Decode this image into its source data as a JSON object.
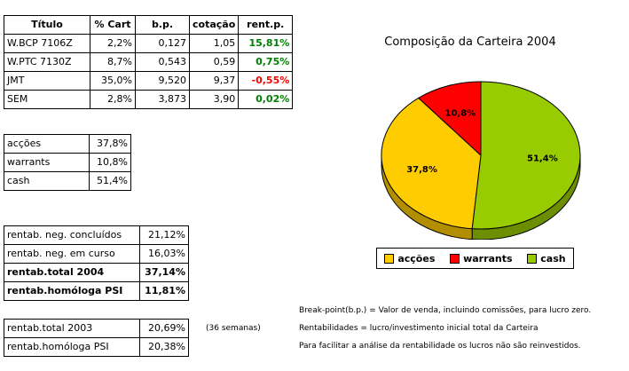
{
  "portfolio": {
    "headers": [
      "Título",
      "% Cart",
      "b.p.",
      "cotação",
      "rent.p."
    ],
    "rows": [
      {
        "titulo": "W.BCP 7106Z",
        "cart": "2,2%",
        "bp": "0,127",
        "cotacao": "1,05",
        "rent": "15,81%",
        "sign": "pos"
      },
      {
        "titulo": "W.PTC 7130Z",
        "cart": "8,7%",
        "bp": "0,543",
        "cotacao": "0,59",
        "rent": "0,75%",
        "sign": "pos"
      },
      {
        "titulo": "JMT",
        "cart": "35,0%",
        "bp": "9,520",
        "cotacao": "9,37",
        "rent": "-0,55%",
        "sign": "neg"
      },
      {
        "titulo": "SEM",
        "cart": "2,8%",
        "bp": "3,873",
        "cotacao": "3,90",
        "rent": "0,02%",
        "sign": "pos"
      }
    ]
  },
  "composition": {
    "rows": [
      {
        "label": "acções",
        "value": "37,8%"
      },
      {
        "label": "warrants",
        "value": "10,8%"
      },
      {
        "label": "cash",
        "value": "51,4%"
      }
    ]
  },
  "returns": {
    "rows": [
      {
        "label": "rentab. neg. concluídos",
        "value": "21,12%",
        "bold": false
      },
      {
        "label": "rentab. neg. em curso",
        "value": "16,03%",
        "bold": false
      },
      {
        "label": "rentab.total 2004",
        "value": "37,14%",
        "bold": true
      },
      {
        "label": "rentab.homóloga PSI",
        "value": "11,81%",
        "bold": true
      }
    ]
  },
  "history": {
    "rows": [
      {
        "label": "rentab.total 2003",
        "value": "20,69%"
      },
      {
        "label": "rentab.homóloga PSI",
        "value": "20,38%"
      }
    ],
    "note": "(36 semanas)"
  },
  "notes": {
    "line1": "Break-point(b.p.) = Valor de venda, incluindo comissões, para lucro zero.",
    "line2": "Rentabilidades = lucro/investimento inicial total da Carteira",
    "line3": "Para facilitar a análise da rentabilidade os lucros não são reinvestidos."
  },
  "chart_data": {
    "type": "pie",
    "title": "Composição da Carteira 2004",
    "categories": [
      "acções",
      "warrants",
      "cash"
    ],
    "values": [
      37.8,
      10.8,
      51.4
    ],
    "labels": [
      "37,8%",
      "10,8%",
      "51,4%"
    ],
    "colors": [
      "#ffcc00",
      "#ff0000",
      "#99cc00"
    ],
    "legend": "bottom"
  }
}
